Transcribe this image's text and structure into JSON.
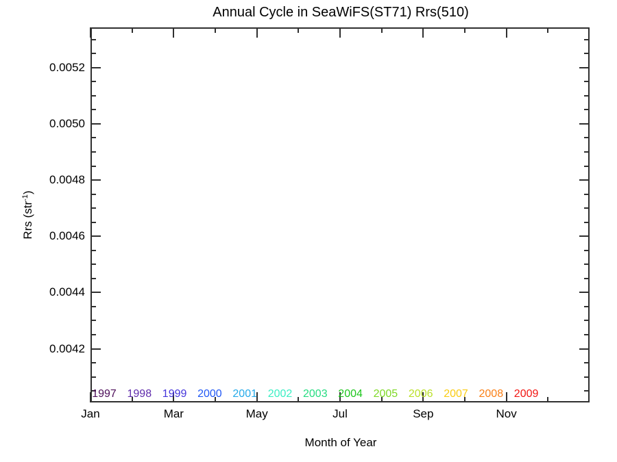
{
  "title": "Annual Cycle in SeaWiFS(ST71) Rrs(510)",
  "xlabel": "Month of Year",
  "ylabel": {
    "prefix": "Rrs (str",
    "sup": "-1",
    "suffix": ")"
  },
  "chart_data": {
    "type": "line",
    "title": "Annual Cycle in SeaWiFS(ST71) Rrs(510)",
    "xlabel": "Month of Year",
    "ylabel": "Rrs (str^-1)",
    "grid": false,
    "plot_area_empty": true,
    "series": [],
    "xlim": [
      0,
      12
    ],
    "x_major_ticks": [
      {
        "pos": 0,
        "label": "Jan"
      },
      {
        "pos": 2,
        "label": "Mar"
      },
      {
        "pos": 4,
        "label": "May"
      },
      {
        "pos": 6,
        "label": "Jul"
      },
      {
        "pos": 8,
        "label": "Sep"
      },
      {
        "pos": 10,
        "label": "Nov"
      }
    ],
    "x_minor_step": 1,
    "ylim": [
      0.004009,
      0.005343
    ],
    "y_major_ticks": [
      {
        "value": 0.0042,
        "label": "0.0042"
      },
      {
        "value": 0.0044,
        "label": "0.0044"
      },
      {
        "value": 0.0046,
        "label": "0.0046"
      },
      {
        "value": 0.0048,
        "label": "0.0048"
      },
      {
        "value": 0.005,
        "label": "0.0050"
      },
      {
        "value": 0.0052,
        "label": "0.0052"
      }
    ],
    "y_minor_step": 5e-05,
    "legend_position": "bottom-inside",
    "legend_years": [
      {
        "year": "1997",
        "color": "#4C0D59"
      },
      {
        "year": "1998",
        "color": "#5F2BAB"
      },
      {
        "year": "1999",
        "color": "#4434DB"
      },
      {
        "year": "2000",
        "color": "#2158F5"
      },
      {
        "year": "2001",
        "color": "#25AAE9"
      },
      {
        "year": "2002",
        "color": "#3BEFC4"
      },
      {
        "year": "2003",
        "color": "#25DC80"
      },
      {
        "year": "2004",
        "color": "#1DC61D"
      },
      {
        "year": "2005",
        "color": "#7ED926"
      },
      {
        "year": "2006",
        "color": "#BBE02A"
      },
      {
        "year": "2007",
        "color": "#FACC12"
      },
      {
        "year": "2008",
        "color": "#FA7F15"
      },
      {
        "year": "2009",
        "color": "#F21511"
      }
    ]
  }
}
